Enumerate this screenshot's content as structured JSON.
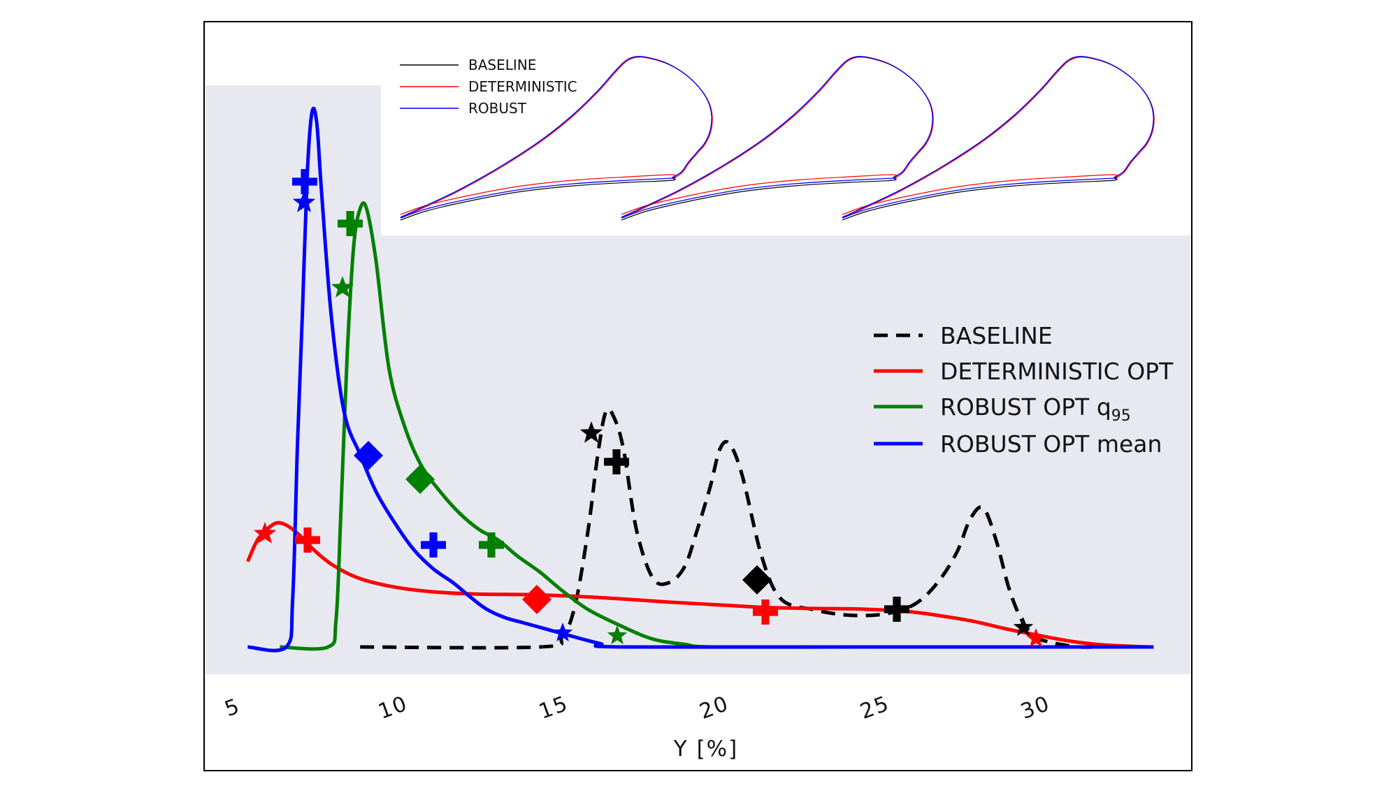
{
  "chart_data": {
    "type": "line",
    "xlabel": "Y [%]",
    "ylabel": "",
    "xlim": [
      4.5,
      34.5
    ],
    "ylim": [
      0,
      1.0
    ],
    "x_ticks": [
      5,
      10,
      15,
      20,
      25,
      30
    ],
    "x_tick_labels": [
      "5",
      "10",
      "15",
      "20",
      "25",
      "30"
    ],
    "grid": false,
    "legend_position": "right",
    "series": [
      {
        "name": "BASELINE",
        "color": "#000000",
        "style": "dashed",
        "x": [
          8.9,
          14.5,
          15.2,
          15.6,
          16.0,
          16.3,
          16.55,
          16.8,
          17.1,
          17.5,
          18.0,
          18.5,
          19.0,
          19.4,
          19.8,
          20.1,
          20.4,
          20.8,
          21.4,
          22.0,
          23.0,
          24.0,
          25.0,
          25.8,
          26.4,
          27.0,
          27.5,
          27.9,
          28.3,
          28.7,
          29.1,
          29.5,
          29.9,
          30.3,
          30.7,
          31.3,
          32.0,
          32.6
        ],
        "y": [
          0.0,
          0.0,
          0.02,
          0.08,
          0.22,
          0.36,
          0.44,
          0.43,
          0.37,
          0.22,
          0.13,
          0.12,
          0.15,
          0.22,
          0.3,
          0.37,
          0.38,
          0.32,
          0.17,
          0.09,
          0.07,
          0.06,
          0.06,
          0.07,
          0.09,
          0.13,
          0.18,
          0.24,
          0.26,
          0.2,
          0.11,
          0.05,
          0.02,
          0.01,
          0.005,
          0.0,
          0.0,
          0.0
        ]
      },
      {
        "name": "DETERMINISTIC OPT",
        "color": "#ff0000",
        "style": "solid",
        "x": [
          5.4,
          5.7,
          6.0,
          6.3,
          6.6,
          7.0,
          7.4,
          8.0,
          8.8,
          9.8,
          11.0,
          12.5,
          14.0,
          15.5,
          17.0,
          18.5,
          20.0,
          21.5,
          23.0,
          24.5,
          26.0,
          27.0,
          28.0,
          29.0,
          30.0,
          31.0,
          32.0,
          33.0,
          33.6
        ],
        "y": [
          0.16,
          0.2,
          0.22,
          0.232,
          0.228,
          0.21,
          0.185,
          0.155,
          0.13,
          0.114,
          0.104,
          0.099,
          0.098,
          0.095,
          0.09,
          0.084,
          0.079,
          0.074,
          0.072,
          0.071,
          0.066,
          0.058,
          0.048,
          0.034,
          0.022,
          0.011,
          0.004,
          0.001,
          0.0
        ]
      },
      {
        "name": "ROBUST OPT q95",
        "color": "#008000",
        "style": "solid",
        "x": [
          6.4,
          7.9,
          8.15,
          8.3,
          8.5,
          8.7,
          8.9,
          9.1,
          9.4,
          9.8,
          10.3,
          10.8,
          11.4,
          12.0,
          12.6,
          13.2,
          13.8,
          14.5,
          15.2,
          16.0,
          17.0,
          18.0,
          19.0,
          20.0,
          25.0,
          33.6
        ],
        "y": [
          0.0,
          0.0,
          0.05,
          0.25,
          0.55,
          0.75,
          0.82,
          0.82,
          0.72,
          0.52,
          0.41,
          0.34,
          0.29,
          0.25,
          0.22,
          0.2,
          0.17,
          0.14,
          0.105,
          0.07,
          0.04,
          0.015,
          0.005,
          0.0,
          0.0,
          0.0
        ]
      },
      {
        "name": "ROBUST OPT mean",
        "color": "#0000ff",
        "style": "solid",
        "x": [
          5.4,
          6.6,
          6.8,
          6.95,
          7.1,
          7.25,
          7.4,
          7.55,
          7.7,
          8.0,
          8.4,
          8.9,
          9.4,
          10.0,
          10.6,
          11.2,
          11.8,
          12.3,
          12.8,
          13.4,
          14.0,
          14.6,
          15.2,
          15.8,
          16.4,
          17.0,
          25.0,
          33.6
        ],
        "y": [
          0.0,
          0.0,
          0.09,
          0.38,
          0.62,
          0.88,
          1.0,
          0.98,
          0.85,
          0.62,
          0.44,
          0.36,
          0.29,
          0.23,
          0.18,
          0.145,
          0.12,
          0.095,
          0.072,
          0.055,
          0.045,
          0.035,
          0.025,
          0.015,
          0.006,
          0.0,
          0.0,
          0.0
        ]
      }
    ],
    "inset": {
      "legend": [
        "BASELINE",
        "DETERMINISTIC",
        "ROBUST"
      ],
      "colors": [
        "#000000",
        "#ff0000",
        "#0000ff"
      ],
      "description_count": 3
    }
  }
}
